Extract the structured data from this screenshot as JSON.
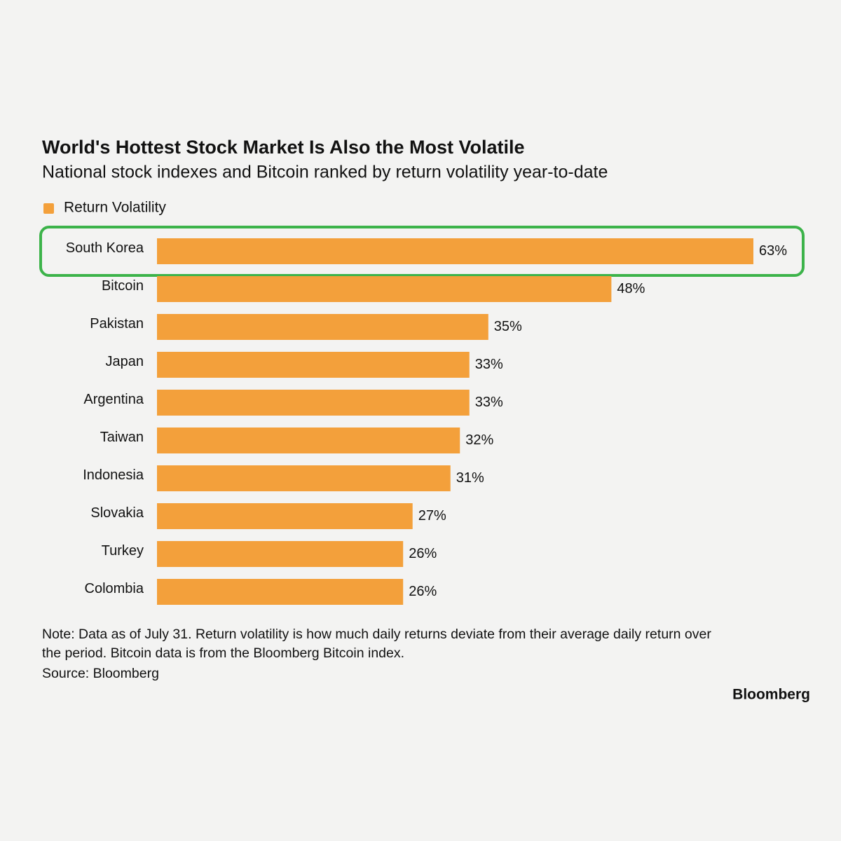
{
  "chart_data": {
    "type": "bar",
    "orientation": "horizontal",
    "title": "World's Hottest Stock Market Is Also the Most Volatile",
    "subtitle": "National stock indexes and Bitcoin ranked by return volatility year-to-date",
    "categories": [
      "South Korea",
      "Bitcoin",
      "Pakistan",
      "Japan",
      "Argentina",
      "Taiwan",
      "Indonesia",
      "Slovakia",
      "Turkey",
      "Colombia"
    ],
    "series": [
      {
        "name": "Return Volatility",
        "color": "#f3a03b",
        "values": [
          63,
          48,
          35,
          33,
          33,
          32,
          31,
          27,
          26,
          26
        ],
        "value_labels": [
          "63%",
          "48%",
          "35%",
          "33%",
          "33%",
          "32%",
          "31%",
          "27%",
          "26%",
          "26%"
        ]
      }
    ],
    "notes": [
      "Note: Data as of July 31. Return volatility is how much daily returns deviate from their average daily return over",
      "the period. Bitcoin data is from the Bloomberg Bitcoin index."
    ],
    "source": "Source: Bloomberg",
    "logo": "Bloomberg"
  }
}
